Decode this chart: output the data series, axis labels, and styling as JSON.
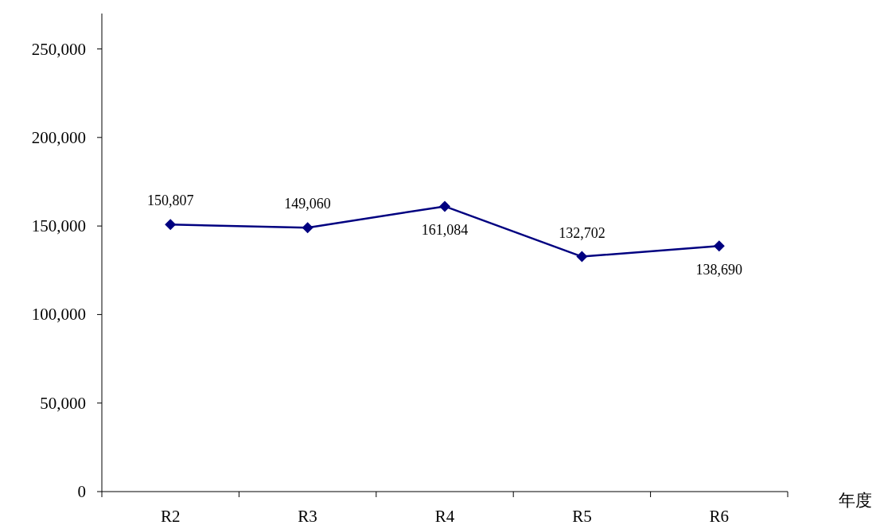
{
  "chart_data": {
    "type": "line",
    "xlabel": "年度",
    "categories": [
      "R2",
      "R3",
      "R4",
      "R5",
      "R6"
    ],
    "series": [
      {
        "color": "#000080",
        "values": [
          150807,
          149060,
          161084,
          132702,
          138690
        ],
        "value_labels": [
          "150,807",
          "149,060",
          "161,084",
          "132,702",
          "138,690"
        ]
      }
    ],
    "ylim": [
      0,
      270000
    ],
    "yticks": [
      0,
      {
        "value": 50000,
        "label": "50,000"
      },
      {
        "value": 100000,
        "label": "100,000"
      },
      {
        "value": 150000,
        "label": "150,000"
      },
      {
        "value": 200000,
        "label": "200,000"
      },
      {
        "value": 250000,
        "label": "250,000"
      }
    ],
    "marker": "diamond",
    "line_style": "solid",
    "grid": false
  }
}
